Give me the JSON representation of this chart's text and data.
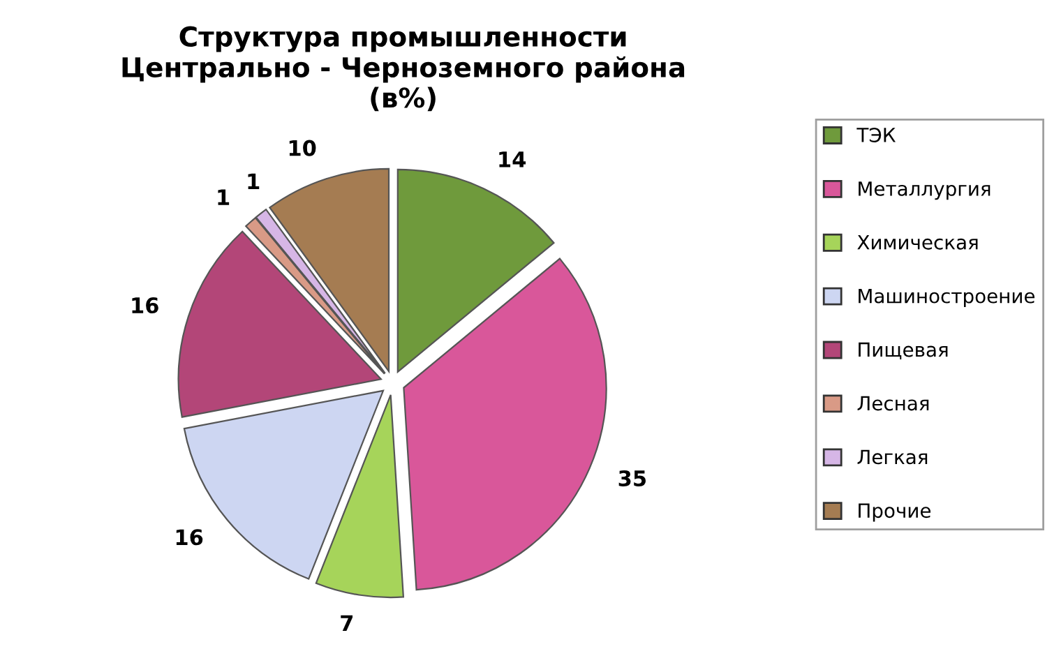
{
  "chart_data": {
    "type": "pie",
    "title": "Структура промышленности\nЦентрально - Черноземного района\n(в%)",
    "categories": [
      "ТЭК",
      "Металлургия",
      "Химическая",
      "Машиностроение",
      "Пищевая",
      "Лесная",
      "Легкая",
      "Прочие"
    ],
    "values": [
      14,
      35,
      7,
      16,
      16,
      1,
      1,
      10
    ],
    "colors": [
      "#6f9a3c",
      "#d9579a",
      "#a6d45a",
      "#cdd6f2",
      "#b34678",
      "#d99a86",
      "#d6b6e6",
      "#a57c52"
    ],
    "data_labels": true,
    "legend": "right"
  }
}
